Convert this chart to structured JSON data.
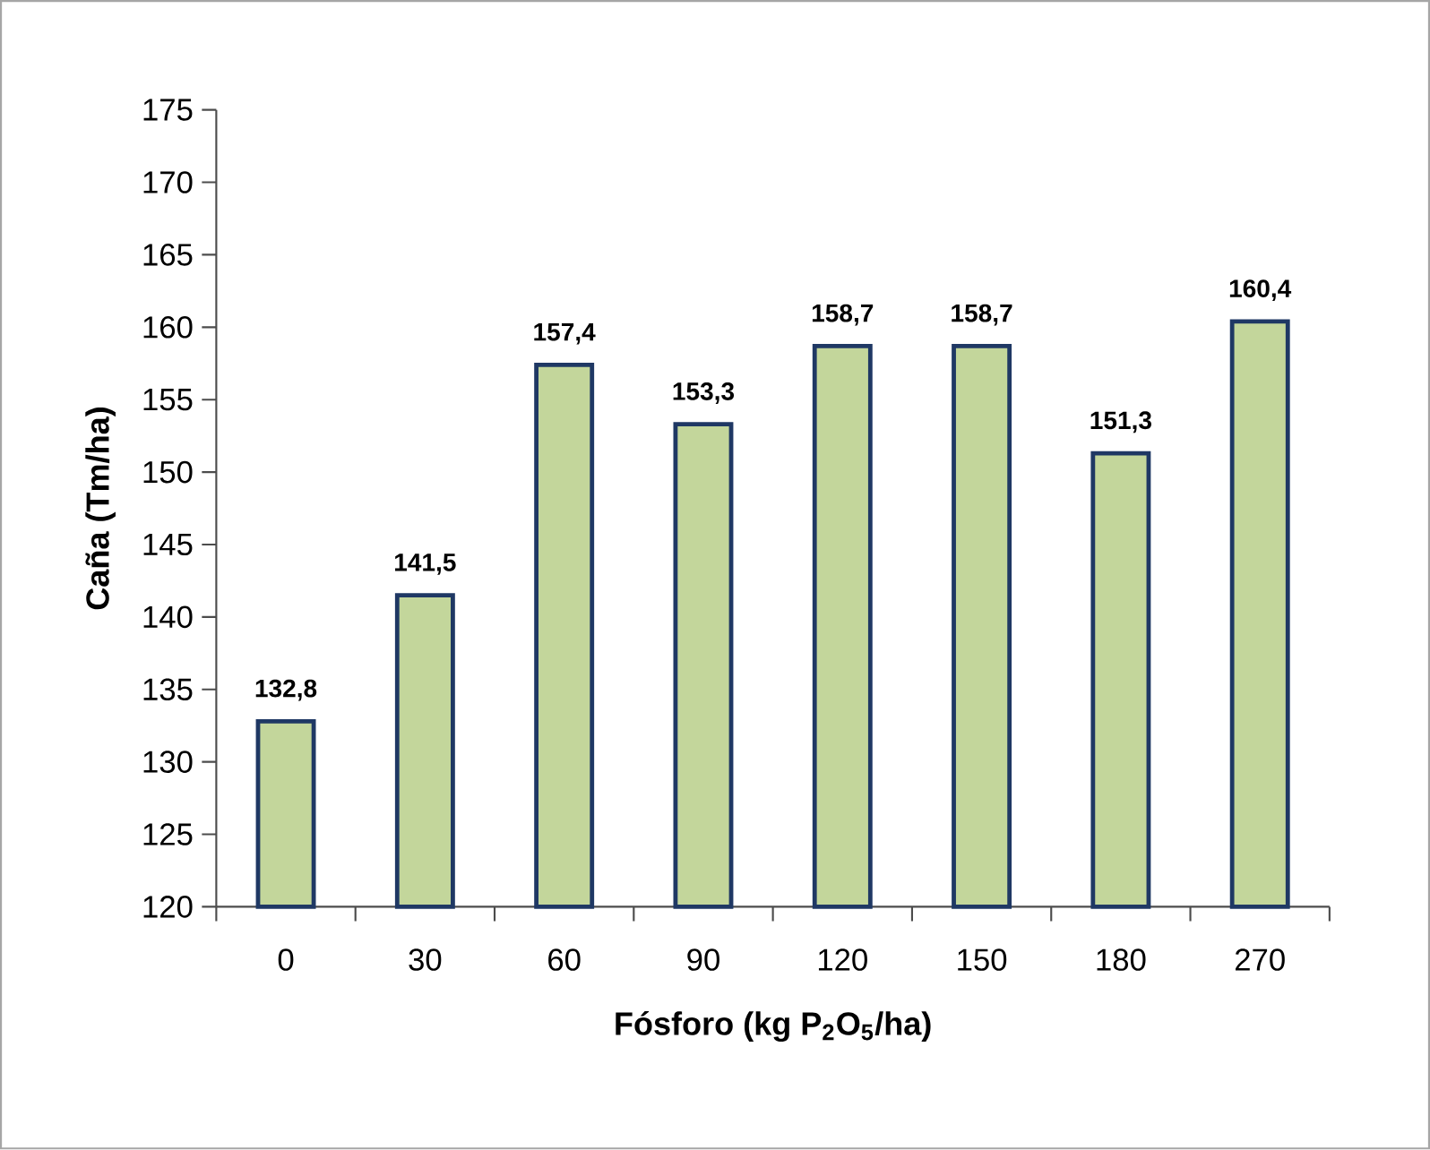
{
  "chart_data": {
    "type": "bar",
    "xlabel": "Fósforo (kg P$_{2}$O$_{5}$/ha)",
    "ylabel": "Caña (Tm/ha)",
    "categories": [
      "0",
      "30",
      "60",
      "90",
      "120",
      "150",
      "180",
      "270"
    ],
    "values": [
      132.8,
      141.5,
      157.4,
      153.3,
      158.7,
      158.7,
      151.3,
      160.4
    ],
    "value_labels": [
      "132,8",
      "141,5",
      "157,4",
      "153,3",
      "158,7",
      "158,7",
      "151,3",
      "160,4"
    ],
    "color": "#c3d69b",
    "ylim": [
      120,
      175
    ],
    "yticks": [
      120,
      125,
      130,
      135,
      140,
      145,
      150,
      155,
      160,
      165,
      170,
      175
    ]
  }
}
